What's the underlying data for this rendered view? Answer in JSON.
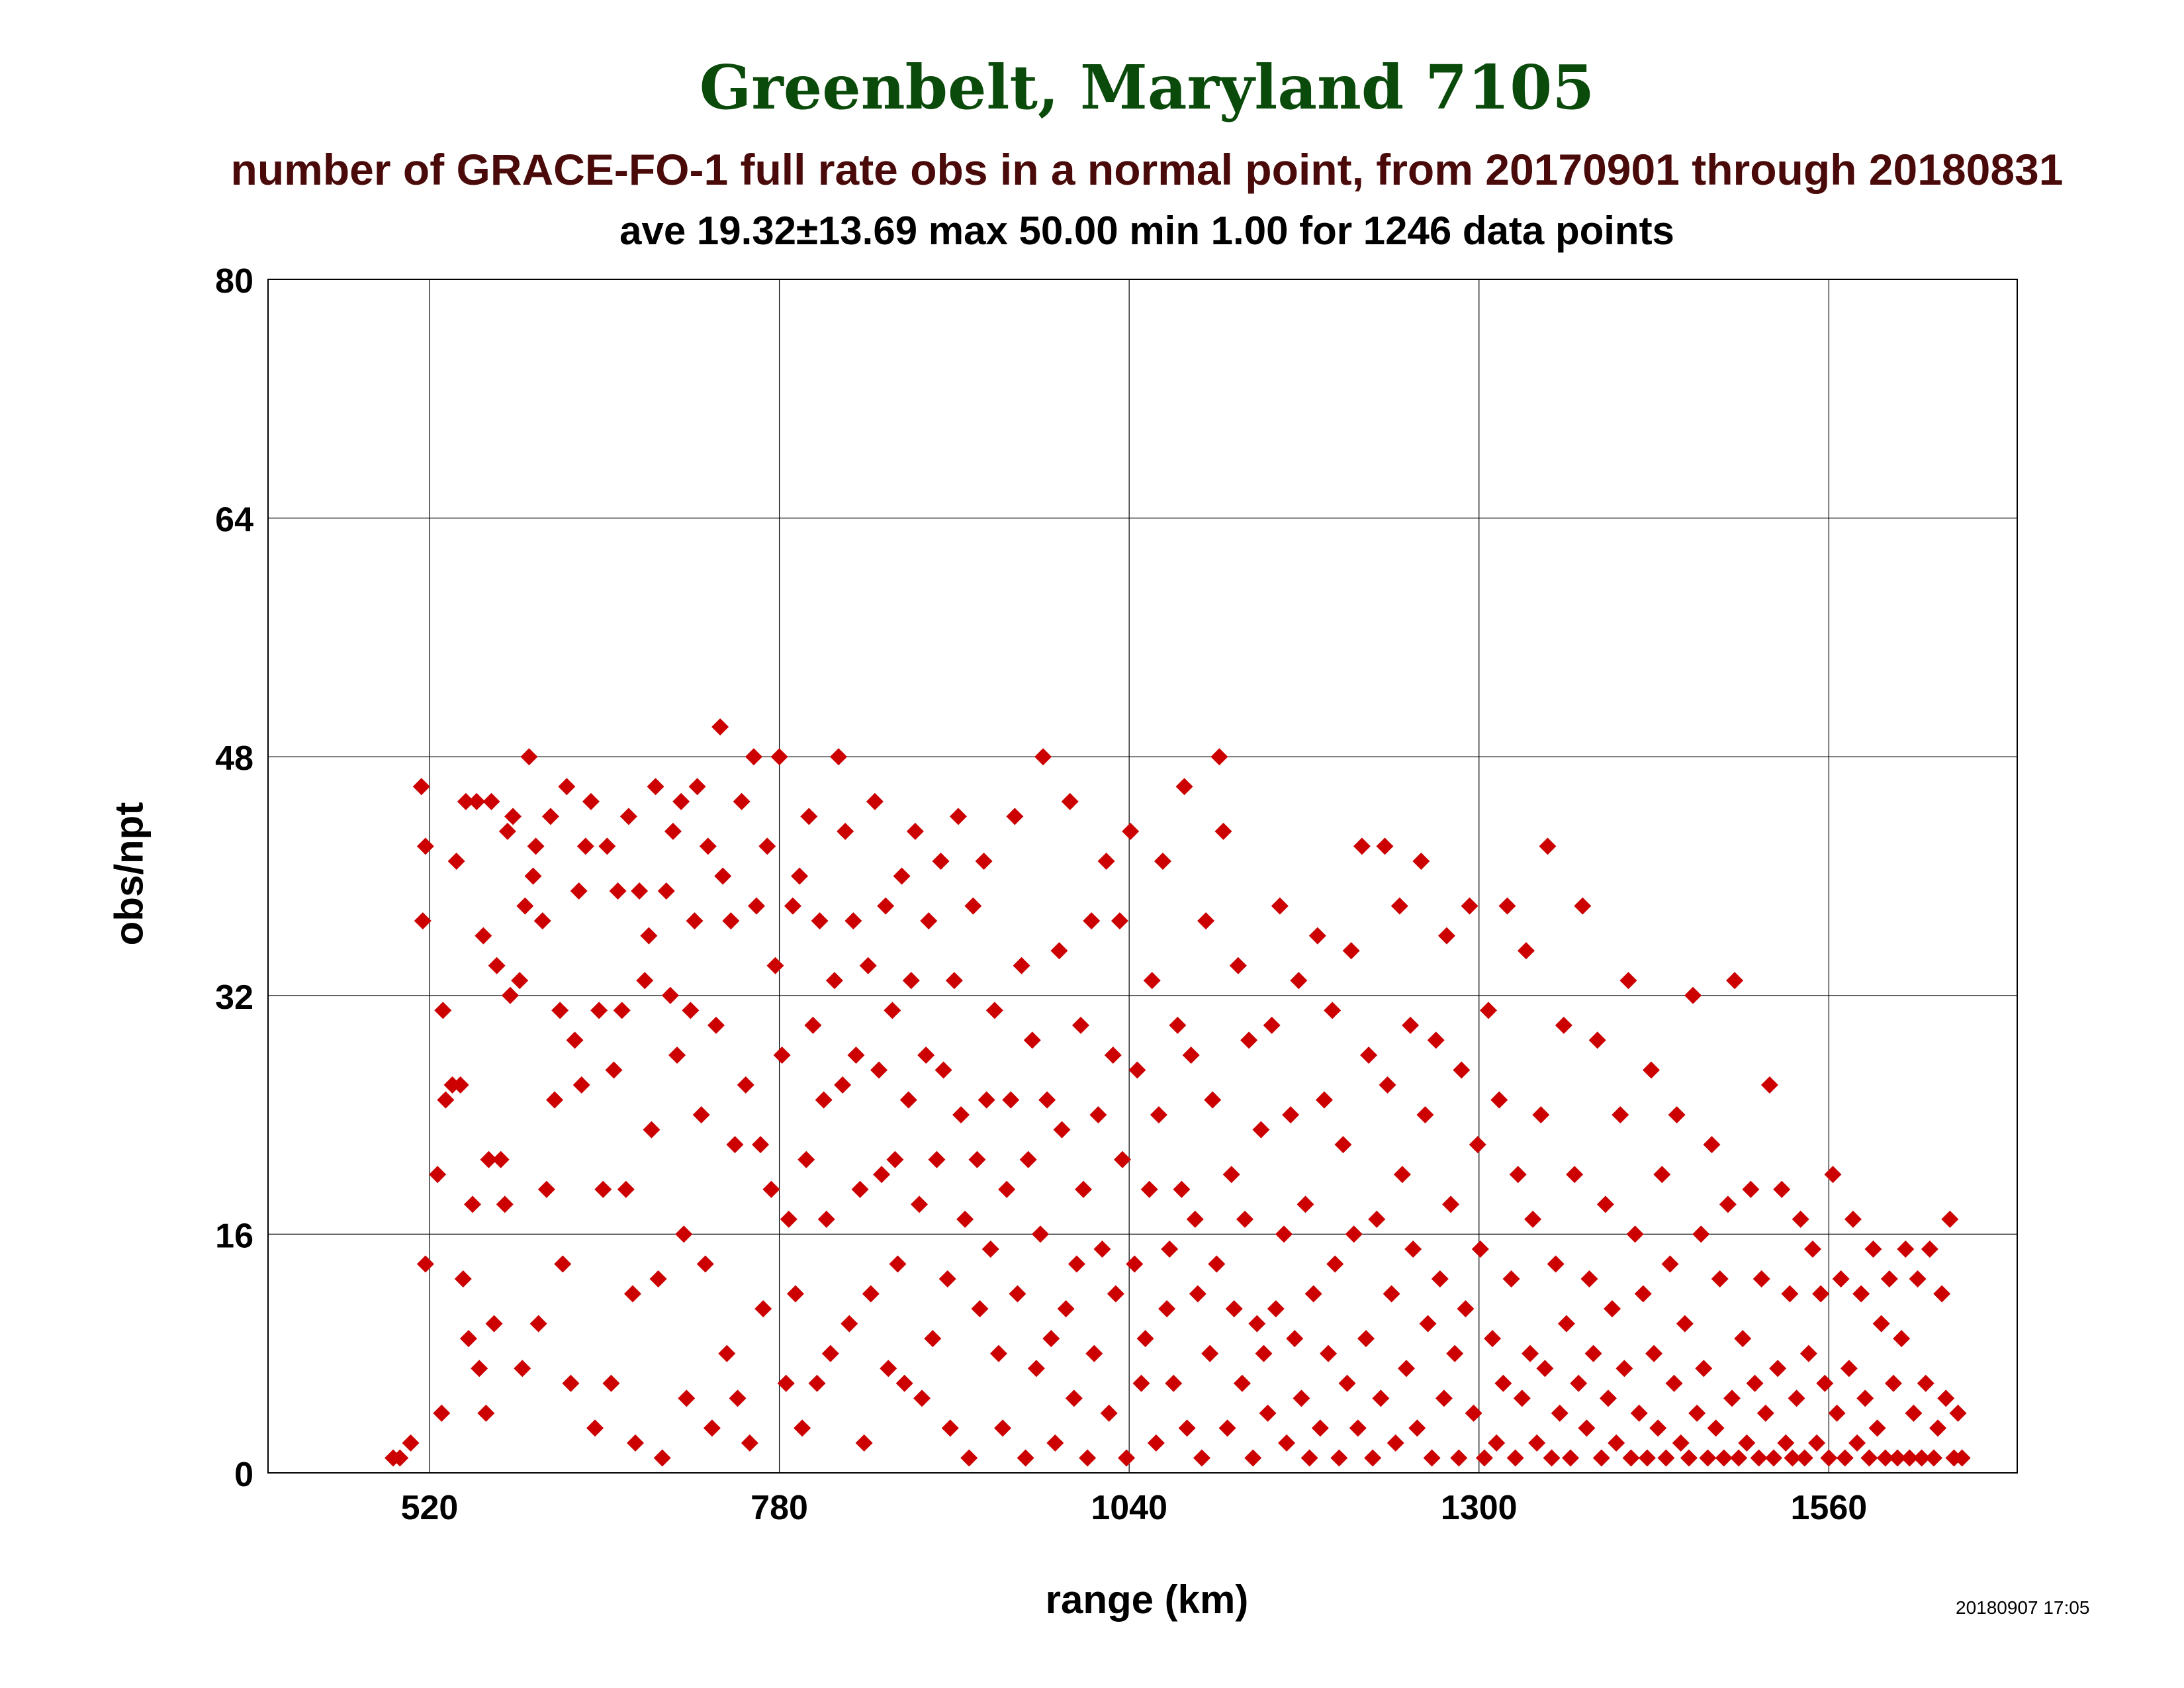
{
  "colors": {
    "title": "#0a4a0a",
    "subtitle": "#4a0a0a",
    "points": "#cc0000"
  },
  "header": {
    "title": "Greenbelt, Maryland 7105",
    "subtitle": "number of GRACE-FO-1 full rate obs in a normal point, from 20170901 through 20180831",
    "stats": "ave 19.32±13.69 max 50.00 min 1.00 for 1246 data points"
  },
  "footer": {
    "timestamp": "20180907 17:05"
  },
  "chart_data": {
    "type": "scatter",
    "title": "Greenbelt, Maryland 7105",
    "subtitle": "number of GRACE-FO-1 full rate obs in a normal point, from 20170901 through 20180831",
    "xlabel": "range (km)",
    "ylabel": "obs/npt",
    "xlim": [
      400,
      1700
    ],
    "ylim": [
      0,
      80
    ],
    "xticks": [
      520,
      780,
      1040,
      1300,
      1560
    ],
    "yticks": [
      0,
      16,
      32,
      48,
      64,
      80
    ],
    "grid": true,
    "marker": "diamond",
    "points": [
      [
        493,
        1
      ],
      [
        498,
        1
      ],
      [
        506,
        2
      ],
      [
        514,
        46
      ],
      [
        517,
        14
      ],
      [
        515,
        37
      ],
      [
        517,
        42
      ],
      [
        526,
        20
      ],
      [
        529,
        4
      ],
      [
        530,
        31
      ],
      [
        532,
        25
      ],
      [
        537,
        26
      ],
      [
        540,
        41
      ],
      [
        543,
        26
      ],
      [
        545,
        13
      ],
      [
        547,
        45
      ],
      [
        549,
        9
      ],
      [
        552,
        18
      ],
      [
        555,
        45
      ],
      [
        557,
        7
      ],
      [
        560,
        36
      ],
      [
        562,
        4
      ],
      [
        564,
        21
      ],
      [
        566,
        45
      ],
      [
        568,
        10
      ],
      [
        570,
        34
      ],
      [
        573,
        21
      ],
      [
        576,
        18
      ],
      [
        578,
        43
      ],
      [
        580,
        32
      ],
      [
        582,
        44
      ],
      [
        587,
        33
      ],
      [
        589,
        7
      ],
      [
        591,
        38
      ],
      [
        594,
        48
      ],
      [
        597,
        40
      ],
      [
        599,
        42
      ],
      [
        601,
        10
      ],
      [
        604,
        37
      ],
      [
        607,
        19
      ],
      [
        610,
        44
      ],
      [
        613,
        25
      ],
      [
        617,
        31
      ],
      [
        619,
        14
      ],
      [
        622,
        46
      ],
      [
        625,
        6
      ],
      [
        628,
        29
      ],
      [
        631,
        39
      ],
      [
        633,
        26
      ],
      [
        636,
        42
      ],
      [
        640,
        45
      ],
      [
        643,
        3
      ],
      [
        646,
        31
      ],
      [
        649,
        19
      ],
      [
        652,
        42
      ],
      [
        655,
        6
      ],
      [
        657,
        27
      ],
      [
        660,
        39
      ],
      [
        663,
        31
      ],
      [
        666,
        19
      ],
      [
        668,
        44
      ],
      [
        671,
        12
      ],
      [
        673,
        2
      ],
      [
        676,
        39
      ],
      [
        680,
        33
      ],
      [
        683,
        36
      ],
      [
        685,
        23
      ],
      [
        688,
        46
      ],
      [
        690,
        13
      ],
      [
        693,
        1
      ],
      [
        696,
        39
      ],
      [
        699,
        32
      ],
      [
        701,
        43
      ],
      [
        704,
        28
      ],
      [
        707,
        45
      ],
      [
        709,
        16
      ],
      [
        711,
        5
      ],
      [
        714,
        31
      ],
      [
        717,
        37
      ],
      [
        719,
        46
      ],
      [
        722,
        24
      ],
      [
        725,
        14
      ],
      [
        727,
        42
      ],
      [
        730,
        3
      ],
      [
        733,
        30
      ],
      [
        736,
        50
      ],
      [
        738,
        40
      ],
      [
        741,
        8
      ],
      [
        744,
        37
      ],
      [
        747,
        22
      ],
      [
        749,
        5
      ],
      [
        752,
        45
      ],
      [
        755,
        26
      ],
      [
        758,
        2
      ],
      [
        761,
        48
      ],
      [
        763,
        38
      ],
      [
        766,
        22
      ],
      [
        768,
        11
      ],
      [
        771,
        42
      ],
      [
        774,
        19
      ],
      [
        777,
        34
      ],
      [
        780,
        48
      ],
      [
        782,
        28
      ],
      [
        785,
        6
      ],
      [
        787,
        17
      ],
      [
        790,
        38
      ],
      [
        792,
        12
      ],
      [
        795,
        40
      ],
      [
        797,
        3
      ],
      [
        800,
        21
      ],
      [
        802,
        44
      ],
      [
        805,
        30
      ],
      [
        808,
        6
      ],
      [
        810,
        37
      ],
      [
        813,
        25
      ],
      [
        815,
        17
      ],
      [
        818,
        8
      ],
      [
        821,
        33
      ],
      [
        824,
        48
      ],
      [
        827,
        26
      ],
      [
        829,
        43
      ],
      [
        832,
        10
      ],
      [
        835,
        37
      ],
      [
        837,
        28
      ],
      [
        840,
        19
      ],
      [
        843,
        2
      ],
      [
        846,
        34
      ],
      [
        848,
        12
      ],
      [
        851,
        45
      ],
      [
        854,
        27
      ],
      [
        856,
        20
      ],
      [
        859,
        38
      ],
      [
        861,
        7
      ],
      [
        864,
        31
      ],
      [
        866,
        21
      ],
      [
        868,
        14
      ],
      [
        871,
        40
      ],
      [
        873,
        6
      ],
      [
        876,
        25
      ],
      [
        878,
        33
      ],
      [
        881,
        43
      ],
      [
        884,
        18
      ],
      [
        886,
        5
      ],
      [
        889,
        28
      ],
      [
        891,
        37
      ],
      [
        894,
        9
      ],
      [
        897,
        21
      ],
      [
        900,
        41
      ],
      [
        902,
        27
      ],
      [
        905,
        13
      ],
      [
        907,
        3
      ],
      [
        910,
        33
      ],
      [
        913,
        44
      ],
      [
        915,
        24
      ],
      [
        918,
        17
      ],
      [
        921,
        1
      ],
      [
        924,
        38
      ],
      [
        927,
        21
      ],
      [
        929,
        11
      ],
      [
        932,
        41
      ],
      [
        934,
        25
      ],
      [
        937,
        15
      ],
      [
        940,
        31
      ],
      [
        943,
        8
      ],
      [
        946,
        3
      ],
      [
        949,
        19
      ],
      [
        952,
        25
      ],
      [
        955,
        44
      ],
      [
        957,
        12
      ],
      [
        960,
        34
      ],
      [
        963,
        1
      ],
      [
        965,
        21
      ],
      [
        968,
        29
      ],
      [
        971,
        7
      ],
      [
        974,
        16
      ],
      [
        976,
        48
      ],
      [
        979,
        25
      ],
      [
        982,
        9
      ],
      [
        985,
        2
      ],
      [
        988,
        35
      ],
      [
        990,
        23
      ],
      [
        993,
        11
      ],
      [
        996,
        45
      ],
      [
        999,
        5
      ],
      [
        1001,
        14
      ],
      [
        1004,
        30
      ],
      [
        1006,
        19
      ],
      [
        1009,
        1
      ],
      [
        1012,
        37
      ],
      [
        1014,
        8
      ],
      [
        1017,
        24
      ],
      [
        1020,
        15
      ],
      [
        1023,
        41
      ],
      [
        1025,
        4
      ],
      [
        1028,
        28
      ],
      [
        1030,
        12
      ],
      [
        1033,
        37
      ],
      [
        1035,
        21
      ],
      [
        1038,
        1
      ],
      [
        1041,
        43
      ],
      [
        1044,
        14
      ],
      [
        1046,
        27
      ],
      [
        1049,
        6
      ],
      [
        1052,
        9
      ],
      [
        1055,
        19
      ],
      [
        1057,
        33
      ],
      [
        1060,
        2
      ],
      [
        1062,
        24
      ],
      [
        1065,
        41
      ],
      [
        1068,
        11
      ],
      [
        1070,
        15
      ],
      [
        1073,
        6
      ],
      [
        1076,
        30
      ],
      [
        1079,
        19
      ],
      [
        1081,
        46
      ],
      [
        1083,
        3
      ],
      [
        1086,
        28
      ],
      [
        1089,
        17
      ],
      [
        1091,
        12
      ],
      [
        1094,
        1
      ],
      [
        1097,
        37
      ],
      [
        1100,
        8
      ],
      [
        1102,
        25
      ],
      [
        1105,
        14
      ],
      [
        1107,
        48
      ],
      [
        1110,
        43
      ],
      [
        1113,
        3
      ],
      [
        1116,
        20
      ],
      [
        1118,
        11
      ],
      [
        1121,
        34
      ],
      [
        1124,
        6
      ],
      [
        1126,
        17
      ],
      [
        1129,
        29
      ],
      [
        1132,
        1
      ],
      [
        1135,
        10
      ],
      [
        1138,
        23
      ],
      [
        1140,
        8
      ],
      [
        1143,
        4
      ],
      [
        1146,
        30
      ],
      [
        1149,
        11
      ],
      [
        1152,
        38
      ],
      [
        1155,
        16
      ],
      [
        1157,
        2
      ],
      [
        1160,
        24
      ],
      [
        1163,
        9
      ],
      [
        1166,
        33
      ],
      [
        1168,
        5
      ],
      [
        1171,
        18
      ],
      [
        1174,
        1
      ],
      [
        1177,
        12
      ],
      [
        1180,
        36
      ],
      [
        1182,
        3
      ],
      [
        1185,
        25
      ],
      [
        1188,
        8
      ],
      [
        1191,
        31
      ],
      [
        1193,
        14
      ],
      [
        1196,
        1
      ],
      [
        1199,
        22
      ],
      [
        1202,
        6
      ],
      [
        1205,
        35
      ],
      [
        1207,
        16
      ],
      [
        1210,
        3
      ],
      [
        1213,
        42
      ],
      [
        1216,
        9
      ],
      [
        1218,
        28
      ],
      [
        1221,
        1
      ],
      [
        1224,
        17
      ],
      [
        1227,
        5
      ],
      [
        1230,
        42
      ],
      [
        1232,
        26
      ],
      [
        1235,
        12
      ],
      [
        1238,
        2
      ],
      [
        1241,
        38
      ],
      [
        1243,
        20
      ],
      [
        1246,
        7
      ],
      [
        1249,
        30
      ],
      [
        1251,
        15
      ],
      [
        1254,
        3
      ],
      [
        1257,
        41
      ],
      [
        1260,
        24
      ],
      [
        1262,
        10
      ],
      [
        1265,
        1
      ],
      [
        1268,
        29
      ],
      [
        1271,
        13
      ],
      [
        1274,
        5
      ],
      [
        1276,
        36
      ],
      [
        1279,
        18
      ],
      [
        1282,
        8
      ],
      [
        1285,
        1
      ],
      [
        1287,
        27
      ],
      [
        1290,
        11
      ],
      [
        1293,
        38
      ],
      [
        1296,
        4
      ],
      [
        1299,
        22
      ],
      [
        1301,
        15
      ],
      [
        1304,
        1
      ],
      [
        1307,
        31
      ],
      [
        1310,
        9
      ],
      [
        1313,
        2
      ],
      [
        1315,
        25
      ],
      [
        1318,
        6
      ],
      [
        1321,
        38
      ],
      [
        1324,
        13
      ],
      [
        1327,
        1
      ],
      [
        1329,
        20
      ],
      [
        1332,
        5
      ],
      [
        1335,
        35
      ],
      [
        1338,
        8
      ],
      [
        1340,
        17
      ],
      [
        1343,
        2
      ],
      [
        1346,
        24
      ],
      [
        1349,
        7
      ],
      [
        1351,
        42
      ],
      [
        1354,
        1
      ],
      [
        1357,
        14
      ],
      [
        1360,
        4
      ],
      [
        1363,
        30
      ],
      [
        1365,
        10
      ],
      [
        1368,
        1
      ],
      [
        1371,
        20
      ],
      [
        1374,
        6
      ],
      [
        1377,
        38
      ],
      [
        1380,
        3
      ],
      [
        1382,
        13
      ],
      [
        1385,
        8
      ],
      [
        1388,
        29
      ],
      [
        1391,
        1
      ],
      [
        1394,
        18
      ],
      [
        1396,
        5
      ],
      [
        1399,
        11
      ],
      [
        1402,
        2
      ],
      [
        1405,
        24
      ],
      [
        1408,
        7
      ],
      [
        1411,
        33
      ],
      [
        1413,
        1
      ],
      [
        1416,
        16
      ],
      [
        1419,
        4
      ],
      [
        1422,
        12
      ],
      [
        1425,
        1
      ],
      [
        1428,
        27
      ],
      [
        1430,
        8
      ],
      [
        1433,
        3
      ],
      [
        1436,
        20
      ],
      [
        1439,
        1
      ],
      [
        1442,
        14
      ],
      [
        1445,
        6
      ],
      [
        1447,
        24
      ],
      [
        1450,
        2
      ],
      [
        1453,
        10
      ],
      [
        1456,
        1
      ],
      [
        1459,
        32
      ],
      [
        1462,
        4
      ],
      [
        1465,
        16
      ],
      [
        1467,
        7
      ],
      [
        1470,
        1
      ],
      [
        1473,
        22
      ],
      [
        1476,
        3
      ],
      [
        1479,
        13
      ],
      [
        1482,
        1
      ],
      [
        1485,
        18
      ],
      [
        1488,
        5
      ],
      [
        1490,
        33
      ],
      [
        1493,
        1
      ],
      [
        1496,
        9
      ],
      [
        1499,
        2
      ],
      [
        1502,
        19
      ],
      [
        1505,
        6
      ],
      [
        1508,
        1
      ],
      [
        1510,
        13
      ],
      [
        1513,
        4
      ],
      [
        1516,
        26
      ],
      [
        1519,
        1
      ],
      [
        1522,
        7
      ],
      [
        1525,
        19
      ],
      [
        1528,
        2
      ],
      [
        1531,
        12
      ],
      [
        1533,
        1
      ],
      [
        1536,
        5
      ],
      [
        1539,
        17
      ],
      [
        1542,
        1
      ],
      [
        1545,
        8
      ],
      [
        1548,
        15
      ],
      [
        1551,
        2
      ],
      [
        1554,
        12
      ],
      [
        1557,
        6
      ],
      [
        1560,
        1
      ],
      [
        1563,
        20
      ],
      [
        1566,
        4
      ],
      [
        1569,
        13
      ],
      [
        1572,
        1
      ],
      [
        1575,
        7
      ],
      [
        1578,
        17
      ],
      [
        1581,
        2
      ],
      [
        1584,
        12
      ],
      [
        1587,
        5
      ],
      [
        1590,
        1
      ],
      [
        1593,
        15
      ],
      [
        1596,
        3
      ],
      [
        1599,
        10
      ],
      [
        1602,
        1
      ],
      [
        1605,
        13
      ],
      [
        1608,
        6
      ],
      [
        1611,
        1
      ],
      [
        1614,
        9
      ],
      [
        1617,
        15
      ],
      [
        1620,
        1
      ],
      [
        1623,
        4
      ],
      [
        1626,
        13
      ],
      [
        1629,
        1
      ],
      [
        1632,
        6
      ],
      [
        1635,
        15
      ],
      [
        1638,
        1
      ],
      [
        1641,
        3
      ],
      [
        1644,
        12
      ],
      [
        1647,
        5
      ],
      [
        1650,
        17
      ],
      [
        1653,
        1
      ],
      [
        1656,
        4
      ],
      [
        1659,
        1
      ]
    ]
  }
}
